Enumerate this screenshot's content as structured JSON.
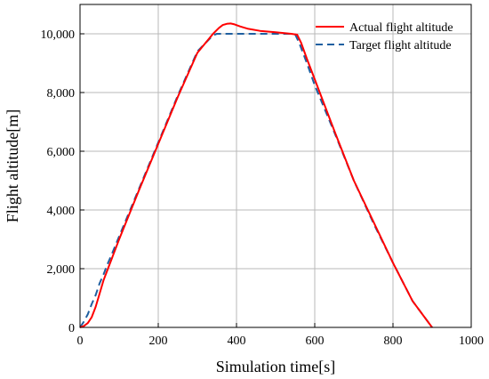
{
  "chart_data": {
    "type": "line",
    "title": "",
    "xlabel": "Simulation time[s]",
    "ylabel": "Flight altitude[m]",
    "xlim": [
      0,
      1000
    ],
    "ylim": [
      0,
      11000
    ],
    "xticks": [
      0,
      200,
      400,
      600,
      800,
      1000
    ],
    "xtick_labels": [
      "0",
      "200",
      "400",
      "600",
      "800",
      "1000"
    ],
    "yticks": [
      0,
      2000,
      4000,
      6000,
      8000,
      10000
    ],
    "ytick_labels": [
      "0",
      "2,000",
      "4,000",
      "6,000",
      "8,000",
      "10,000"
    ],
    "grid": true,
    "legend_position": "top-right",
    "series": [
      {
        "name": "Actual flight altitude",
        "color": "#ff0000",
        "style": "solid",
        "x": [
          0,
          10,
          20,
          30,
          40,
          50,
          60,
          70,
          80,
          100,
          150,
          200,
          250,
          300,
          340,
          355,
          365,
          375,
          385,
          395,
          410,
          430,
          460,
          500,
          540,
          555,
          565,
          580,
          600,
          650,
          700,
          750,
          800,
          850,
          900
        ],
        "y": [
          0,
          50,
          150,
          350,
          700,
          1150,
          1600,
          1950,
          2300,
          3000,
          4650,
          6250,
          7850,
          9350,
          10000,
          10200,
          10300,
          10340,
          10350,
          10320,
          10250,
          10170,
          10100,
          10050,
          10000,
          9970,
          9700,
          9150,
          8450,
          6700,
          5000,
          3600,
          2200,
          900,
          0
        ]
      },
      {
        "name": "Target flight altitude",
        "color": "#1f5fa0",
        "style": "dashed",
        "x": [
          0,
          10,
          20,
          30,
          40,
          50,
          60,
          70,
          80,
          100,
          150,
          200,
          250,
          300,
          340,
          350,
          360,
          400,
          450,
          500,
          540,
          550,
          560,
          580,
          600,
          650,
          700,
          750,
          800,
          850,
          900
        ],
        "y": [
          0,
          200,
          450,
          800,
          1100,
          1500,
          1800,
          2150,
          2450,
          3100,
          4700,
          6300,
          7900,
          9400,
          9950,
          10000,
          10000,
          10000,
          10000,
          10000,
          10000,
          9980,
          9700,
          9000,
          8250,
          6650,
          5000,
          3550,
          2200,
          900,
          0
        ]
      }
    ]
  }
}
